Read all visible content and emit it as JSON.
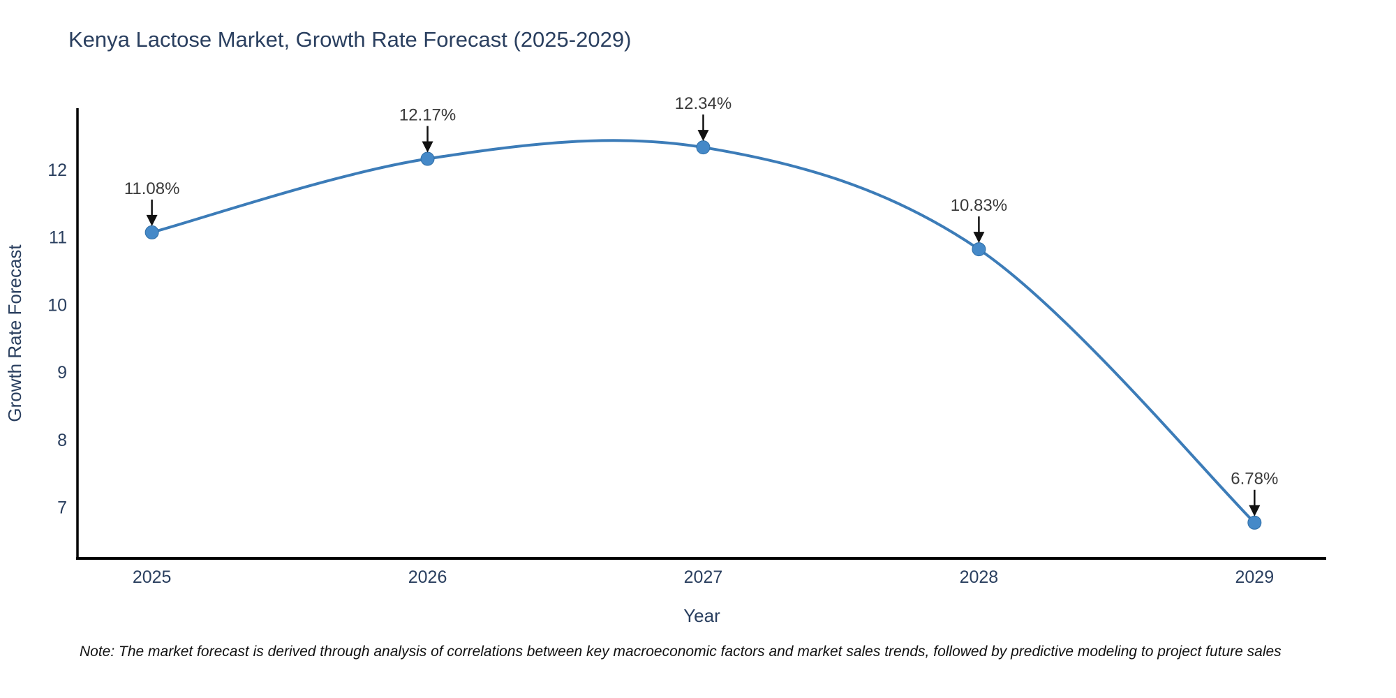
{
  "chart_data": {
    "type": "line",
    "title": "Kenya Lactose Market, Growth Rate Forecast (2025-2029)",
    "xlabel": "Year",
    "ylabel": "Growth Rate Forecast",
    "x": [
      2025,
      2026,
      2027,
      2028,
      2029
    ],
    "xticks": [
      "2025",
      "2026",
      "2027",
      "2028",
      "2029"
    ],
    "yticks": [
      7,
      8,
      9,
      10,
      11,
      12
    ],
    "series": [
      {
        "name": "Growth Rate Forecast",
        "values": [
          11.08,
          12.17,
          12.34,
          10.83,
          6.78
        ]
      }
    ],
    "point_labels": [
      "11.08%",
      "12.17%",
      "12.34%",
      "10.83%",
      "6.78%"
    ],
    "xlim": [
      2024.73,
      2029.26
    ],
    "ylim": [
      6.25,
      12.92
    ],
    "line_shape": "spline",
    "grid": false,
    "legend_position": "none",
    "annotation_style": "label-with-down-arrow",
    "colors": {
      "line": "#3c7cb8",
      "marker_fill": "#4589c8",
      "marker_edge": "#2f6ea6",
      "axis_line": "#000000",
      "axis_text": "#2a3f5f",
      "title_text": "#2a3f5f",
      "annotation_text": "#3a3a3a",
      "arrow": "#111111",
      "background": "#ffffff"
    }
  },
  "footnote": "Note: The market forecast is derived through analysis of correlations between key macroeconomic factors and market sales trends, followed by predictive modeling to project future sales"
}
